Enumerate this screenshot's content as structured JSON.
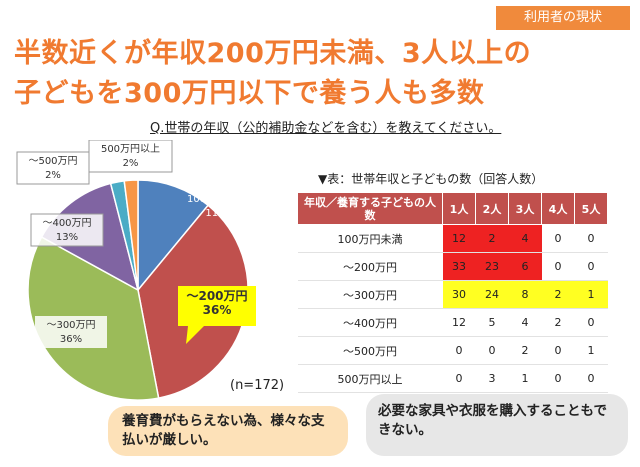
{
  "tag": "利用者の現状",
  "headline": {
    "line1": "半数近くが年収200万円未満、3人以上の",
    "line2": "子どもを300万円以下で養う人も多数"
  },
  "question": "Q.世帯の年収（公的補助金などを含む）を教えてください。",
  "n_label": "(n=172)",
  "colors": {
    "accent": "#f07a30",
    "header": "#c0504d",
    "red": "#ee2222",
    "yellow": "#ffff22"
  },
  "chart_data": [
    {
      "type": "pie",
      "slices": [
        {
          "label": "100万円未満",
          "value": 11,
          "text": "11%",
          "color": "#4f81bd"
        },
        {
          "label": "～200万円",
          "value": 36,
          "text": "36%",
          "color": "#c0504d"
        },
        {
          "label": "～300万円",
          "value": 36,
          "text": "36%",
          "color": "#9bbb59"
        },
        {
          "label": "～400万円",
          "value": 13,
          "text": "13%",
          "color": "#8064a2"
        },
        {
          "label": "～500万円",
          "value": 2,
          "text": "2%",
          "color": "#4bacc6"
        },
        {
          "label": "500万円以上",
          "value": 2,
          "text": "2%",
          "color": "#f79646"
        }
      ]
    },
    {
      "type": "table",
      "title": "▼表：世帯年収と子どもの数（回答人数）",
      "header": "年収／養育する子どもの人数",
      "columns": [
        "1人",
        "2人",
        "3人",
        "4人",
        "5人"
      ],
      "rows": [
        {
          "label": "100万円未満",
          "values": [
            "12",
            "2",
            "4",
            "0",
            "0"
          ],
          "hl": [
            "r",
            "r",
            "r",
            "",
            ""
          ]
        },
        {
          "label": "～200万円",
          "values": [
            "33",
            "23",
            "6",
            "0",
            "0"
          ],
          "hl": [
            "r",
            "r",
            "r",
            "",
            ""
          ]
        },
        {
          "label": "～300万円",
          "values": [
            "30",
            "24",
            "8",
            "2",
            "1"
          ],
          "hl": [
            "y",
            "y",
            "y",
            "y",
            "y"
          ]
        },
        {
          "label": "～400万円",
          "values": [
            "12",
            "5",
            "4",
            "2",
            "0"
          ],
          "hl": [
            "",
            "",
            "",
            "",
            ""
          ]
        },
        {
          "label": "～500万円",
          "values": [
            "0",
            "0",
            "2",
            "0",
            "1"
          ],
          "hl": [
            "",
            "",
            "",
            "",
            ""
          ]
        },
        {
          "label": "500万円以上",
          "values": [
            "0",
            "3",
            "1",
            "0",
            "0"
          ],
          "hl": [
            "",
            "",
            "",
            "",
            ""
          ]
        }
      ]
    }
  ],
  "callouts": [
    {
      "text": "養育費がもらえない為、様々な支払いが厳しい。"
    },
    {
      "text": "必要な家具や衣服を購入することもできない。"
    }
  ]
}
